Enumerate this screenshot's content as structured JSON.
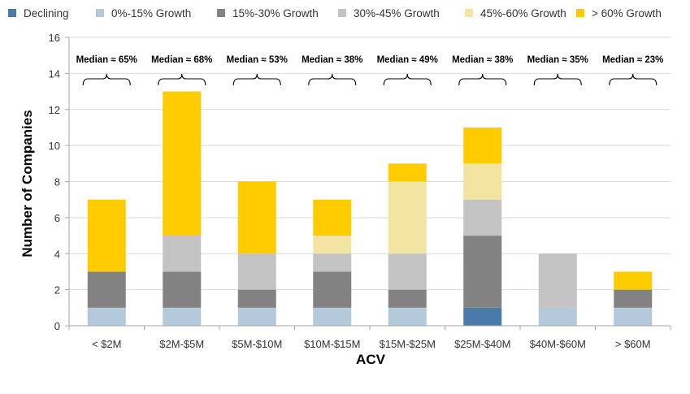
{
  "chart_data": {
    "type": "bar",
    "stacked": true,
    "categories": [
      "< $2M",
      "$2M-$5M",
      "$5M-$10M",
      "$10M-$15M",
      "$15M-$25M",
      "$25M-$40M",
      "$40M-$60M",
      "> $60M"
    ],
    "series": [
      {
        "name": "Declining",
        "color": "#4a7aab",
        "values": [
          0,
          0,
          0,
          0,
          0,
          1,
          0,
          0
        ]
      },
      {
        "name": "0%-15% Growth",
        "color": "#b4c9da",
        "values": [
          1,
          1,
          1,
          1,
          1,
          0,
          1,
          1
        ]
      },
      {
        "name": "15%-30% Growth",
        "color": "#828282",
        "values": [
          2,
          2,
          1,
          2,
          1,
          4,
          0,
          1
        ]
      },
      {
        "name": "30%-45% Growth",
        "color": "#c3c3c3",
        "values": [
          0,
          2,
          2,
          1,
          2,
          2,
          3,
          0
        ]
      },
      {
        "name": "45%-60% Growth",
        "color": "#f2e5a2",
        "values": [
          0,
          0,
          0,
          1,
          4,
          2,
          0,
          0
        ]
      },
      {
        "name": "> 60% Growth",
        "color": "#ffcc00",
        "values": [
          4,
          8,
          4,
          2,
          1,
          2,
          0,
          1
        ]
      }
    ],
    "medians": [
      "Median ≈ 65%",
      "Median ≈ 68%",
      "Median ≈ 53%",
      "Median ≈ 38%",
      "Median ≈ 49%",
      "Median ≈ 38%",
      "Median ≈ 35%",
      "Median ≈ 23%"
    ],
    "xlabel": "ACV",
    "ylabel": "Number of Companies",
    "ylim": [
      0,
      16
    ],
    "yticks": [
      0,
      2,
      4,
      6,
      8,
      10,
      12,
      14,
      16
    ],
    "grid": true,
    "legend": "top"
  }
}
